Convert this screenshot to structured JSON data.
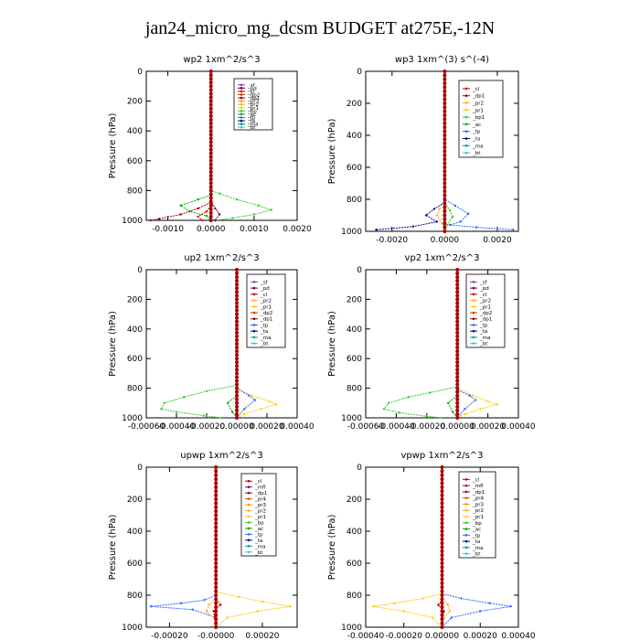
{
  "title": "jan24_micro_mg_dcsm  BUDGET at275E,-12N",
  "colors": {
    "main_profile": "#cc0000",
    "sf": "#9933cc",
    "pd": "#660033",
    "cl": "#cc0000",
    "dp2": "#cc3300",
    "dp1": "#990000",
    "pr3": "#ff9900",
    "pr2": "#ffaa33",
    "pr1": "#ffcc00",
    "pr4": "#cc6600",
    "bp": "#33cc33",
    "ac": "#00aa00",
    "tp": "#3366ff",
    "ta": "#000099",
    "ma": "#009999",
    "bt": "#33cccc",
    "mfl": "#990066"
  },
  "chart_data": [
    {
      "id": "wp2",
      "type": "line",
      "title": "wp2  1xm^2/s^3",
      "ylabel": "Pressure (hPa)",
      "ylim": [
        1000,
        0
      ],
      "yticks": [
        0,
        200,
        400,
        600,
        800,
        1000
      ],
      "xlim": [
        -0.0015,
        0.002
      ],
      "xticks": [
        -0.001,
        0.0,
        0.001,
        0.002
      ],
      "xtick_labels": [
        "-0.0010",
        "0.0000",
        "0.0010",
        "0.0020"
      ],
      "legend": [
        "_sf",
        "_pd",
        "_cl",
        "_dp2",
        "_dp1",
        "_pr3",
        "_pr2",
        "_pr1",
        "_bp",
        "_ac",
        "_tp",
        "_ta",
        "_ma",
        "_bt"
      ],
      "series": [
        {
          "key": "bp",
          "points": [
            [
              0,
              0
            ],
            [
              0,
              800
            ],
            [
              0.0002,
              820
            ],
            [
              0.0006,
              860
            ],
            [
              0.0011,
              900
            ],
            [
              0.0014,
              930
            ],
            [
              0.001,
              960
            ],
            [
              0.0005,
              985
            ],
            [
              0.0001,
              1000
            ]
          ]
        },
        {
          "key": "ac",
          "points": [
            [
              0,
              0
            ],
            [
              0,
              830
            ],
            [
              -0.0003,
              860
            ],
            [
              -0.0007,
              900
            ],
            [
              -0.0005,
              940
            ],
            [
              -0.0001,
              970
            ],
            [
              0,
              1000
            ]
          ]
        },
        {
          "key": "dp1",
          "points": [
            [
              0,
              0
            ],
            [
              0,
              880
            ],
            [
              -0.0003,
              920
            ],
            [
              -0.0007,
              960
            ],
            [
              -0.0012,
              990
            ],
            [
              -0.0014,
              1000
            ]
          ]
        },
        {
          "key": "cl",
          "points": [
            [
              0,
              0
            ],
            [
              0,
              900
            ],
            [
              -0.0001,
              940
            ],
            [
              -0.0003,
              975
            ],
            [
              -0.0002,
              1000
            ]
          ]
        },
        {
          "key": "pd",
          "points": [
            [
              0,
              0
            ],
            [
              0,
              870
            ],
            [
              0.0001,
              920
            ],
            [
              0.0002,
              960
            ],
            [
              0.0001,
              1000
            ]
          ]
        },
        {
          "key": "main_profile",
          "points": [
            [
              0,
              0
            ],
            [
              0,
              1000
            ]
          ]
        }
      ]
    },
    {
      "id": "wp3",
      "type": "line",
      "title": "wp3  1xm^(3) s^(-4)",
      "ylabel": "Pressure (hPa)",
      "ylim": [
        1000,
        0
      ],
      "yticks": [
        0,
        200,
        400,
        600,
        800,
        1000
      ],
      "xlim": [
        -0.003,
        0.0028
      ],
      "xticks": [
        -0.002,
        0.0,
        0.002
      ],
      "xtick_labels": [
        "-0.0020",
        "0.0000",
        "0.0020"
      ],
      "legend": [
        "_cl",
        "_dp1",
        "_pr2",
        "_pr1",
        "_bp1",
        "_ac",
        "_tp",
        "_ta",
        "_ma",
        "_bt"
      ],
      "series": [
        {
          "key": "tp",
          "points": [
            [
              0,
              0
            ],
            [
              0,
              800
            ],
            [
              0.0004,
              840
            ],
            [
              0.0009,
              890
            ],
            [
              0.0006,
              940
            ],
            [
              0.0002,
              960
            ],
            [
              0.0012,
              975
            ],
            [
              0.0026,
              990
            ]
          ]
        },
        {
          "key": "ta",
          "points": [
            [
              0,
              0
            ],
            [
              0,
              820
            ],
            [
              -0.0004,
              860
            ],
            [
              -0.0007,
              900
            ],
            [
              -0.0003,
              940
            ],
            [
              -0.0012,
              970
            ],
            [
              -0.0026,
              990
            ]
          ]
        },
        {
          "key": "pr2",
          "points": [
            [
              0,
              0
            ],
            [
              0,
              800
            ],
            [
              -0.0002,
              860
            ],
            [
              -0.0003,
              900
            ],
            [
              -0.0001,
              950
            ],
            [
              0,
              990
            ]
          ]
        },
        {
          "key": "bp",
          "points": [
            [
              0,
              0
            ],
            [
              0,
              820
            ],
            [
              0.0002,
              870
            ],
            [
              0.0003,
              910
            ],
            [
              0.0001,
              960
            ],
            [
              0,
              990
            ]
          ]
        },
        {
          "key": "main_profile",
          "points": [
            [
              0,
              0
            ],
            [
              0,
              1000
            ]
          ]
        }
      ]
    },
    {
      "id": "up2",
      "type": "line",
      "title": "up2  1xm^2/s^3",
      "ylabel": "Pressure (hPa)",
      "ylim": [
        1000,
        0
      ],
      "yticks": [
        0,
        200,
        400,
        600,
        800,
        1000
      ],
      "xlim": [
        -0.0006,
        0.0004
      ],
      "xticks": [
        -0.0006,
        -0.0004,
        -0.0002,
        0.0,
        0.0002,
        0.0004
      ],
      "xtick_labels": [
        "-0.00060",
        "-0.00040",
        "-0.00020",
        "0.00000",
        "0.00020",
        "0.00040"
      ],
      "legend": [
        "_sf",
        "_pd",
        "_cl",
        "_pr2",
        "_pr1",
        "_dp2",
        "_dp1",
        "_tp",
        "_ta",
        "_ma",
        "_bt"
      ],
      "series": [
        {
          "key": "bp",
          "points": [
            [
              0,
              0
            ],
            [
              0,
              780
            ],
            [
              -0.0002,
              820
            ],
            [
              -0.00035,
              860
            ],
            [
              -0.00048,
              900
            ],
            [
              -0.0005,
              940
            ],
            [
              -0.0004,
              960
            ],
            [
              -0.00022,
              985
            ],
            [
              -0.0001,
              1000
            ]
          ]
        },
        {
          "key": "pr1",
          "points": [
            [
              0,
              0
            ],
            [
              0,
              800
            ],
            [
              0.0001,
              850
            ],
            [
              0.00022,
              890
            ],
            [
              0.00026,
              910
            ],
            [
              0.00016,
              940
            ],
            [
              5e-05,
              975
            ],
            [
              0,
              1000
            ]
          ]
        },
        {
          "key": "tp",
          "points": [
            [
              0,
              0
            ],
            [
              0,
              800
            ],
            [
              8e-05,
              850
            ],
            [
              0.00012,
              880
            ],
            [
              5e-05,
              940
            ],
            [
              0,
              1000
            ]
          ]
        },
        {
          "key": "ac",
          "points": [
            [
              0,
              0
            ],
            [
              0,
              850
            ],
            [
              -6e-05,
              900
            ],
            [
              -3e-05,
              960
            ],
            [
              0,
              1000
            ]
          ]
        },
        {
          "key": "main_profile",
          "points": [
            [
              0,
              0
            ],
            [
              0,
              1000
            ]
          ]
        }
      ]
    },
    {
      "id": "vp2",
      "type": "line",
      "title": "vp2  1xm^2/s^3",
      "ylabel": "Pressure (hPa)",
      "ylim": [
        1000,
        0
      ],
      "yticks": [
        0,
        200,
        400,
        600,
        800,
        1000
      ],
      "xlim": [
        -0.0006,
        0.0004
      ],
      "xticks": [
        -0.0006,
        -0.0004,
        -0.0002,
        0.0,
        0.0002,
        0.0004
      ],
      "xtick_labels": [
        "-0.00060",
        "-0.00040",
        "-0.00020",
        "0.00000",
        "0.00020",
        "0.00040"
      ],
      "legend": [
        "_sf",
        "_pd",
        "_cl",
        "_pr2",
        "_pr1",
        "_dp2",
        "_dp1",
        "_tp",
        "_ta",
        "_ma",
        "_bt"
      ],
      "series": [
        {
          "key": "bp",
          "points": [
            [
              0,
              0
            ],
            [
              0,
              790
            ],
            [
              -0.00018,
              830
            ],
            [
              -0.00032,
              860
            ],
            [
              -0.00045,
              900
            ],
            [
              -0.00048,
              940
            ],
            [
              -0.00038,
              965
            ],
            [
              -0.0002,
              990
            ],
            [
              -0.0001,
              1000
            ]
          ]
        },
        {
          "key": "pr1",
          "points": [
            [
              0,
              0
            ],
            [
              0,
              800
            ],
            [
              0.0001,
              850
            ],
            [
              0.0002,
              890
            ],
            [
              0.00026,
              910
            ],
            [
              0.00015,
              940
            ],
            [
              5e-05,
              975
            ],
            [
              0,
              1000
            ]
          ]
        },
        {
          "key": "tp",
          "points": [
            [
              0,
              0
            ],
            [
              0,
              810
            ],
            [
              8e-05,
              850
            ],
            [
              0.00012,
              880
            ],
            [
              5e-05,
              940
            ],
            [
              0,
              1000
            ]
          ]
        },
        {
          "key": "ac",
          "points": [
            [
              0,
              0
            ],
            [
              0,
              850
            ],
            [
              -6e-05,
              900
            ],
            [
              -3e-05,
              960
            ],
            [
              0,
              1000
            ]
          ]
        },
        {
          "key": "main_profile",
          "points": [
            [
              0,
              0
            ],
            [
              0,
              1000
            ]
          ]
        }
      ]
    },
    {
      "id": "upwp",
      "type": "line",
      "title": "upwp  1xm^2/s^3",
      "ylabel": "Pressure (hPa)",
      "ylim": [
        1000,
        0
      ],
      "yticks": [
        0,
        200,
        400,
        600,
        800,
        1000
      ],
      "xlim": [
        -0.0003,
        0.00035
      ],
      "xticks": [
        -0.0002,
        0.0,
        0.0002
      ],
      "xtick_labels": [
        "-0.00020",
        "-0.00000",
        "0.00020"
      ],
      "legend": [
        "_cl",
        "_mfl",
        "_dp1",
        "_pr4",
        "_pr3",
        "_pr2",
        "_pr1",
        "_bp",
        "_ac",
        "_tp",
        "_ta",
        "_ma",
        "_bt"
      ],
      "series": [
        {
          "key": "pr1",
          "points": [
            [
              0,
              0
            ],
            [
              0,
              780
            ],
            [
              0.0001,
              810
            ],
            [
              0.0002,
              840
            ],
            [
              0.00032,
              870
            ],
            [
              0.00018,
              900
            ],
            [
              5e-05,
              940
            ],
            [
              0,
              1000
            ]
          ]
        },
        {
          "key": "tp",
          "points": [
            [
              0,
              0
            ],
            [
              0,
              800
            ],
            [
              -5e-05,
              830
            ],
            [
              -0.00015,
              850
            ],
            [
              -0.00028,
              870
            ],
            [
              -0.0001,
              890
            ],
            [
              0,
              940
            ],
            [
              0,
              1000
            ]
          ]
        },
        {
          "key": "pr2",
          "points": [
            [
              0,
              0
            ],
            [
              0,
              820
            ],
            [
              -3e-05,
              860
            ],
            [
              -4e-05,
              900
            ],
            [
              0,
              960
            ],
            [
              0,
              1000
            ]
          ]
        },
        {
          "key": "cl",
          "points": [
            [
              0,
              0
            ],
            [
              0,
              820
            ],
            [
              2e-05,
              860
            ],
            [
              -1e-05,
              900
            ],
            [
              0,
              1000
            ]
          ]
        },
        {
          "key": "main_profile",
          "points": [
            [
              0,
              0
            ],
            [
              0,
              1000
            ]
          ]
        }
      ]
    },
    {
      "id": "vpwp",
      "type": "line",
      "title": "vpwp  1xm^2/s^3",
      "ylabel": "Pressure (hPa)",
      "ylim": [
        1000,
        0
      ],
      "yticks": [
        0,
        200,
        400,
        600,
        800,
        1000
      ],
      "xlim": [
        -0.0004,
        0.0004
      ],
      "xticks": [
        -0.0004,
        -0.0002,
        0.0,
        0.0002,
        0.0004
      ],
      "xtick_labels": [
        "-0.00040",
        "-0.00020",
        "0.00000",
        "0.00020",
        "0.00040"
      ],
      "legend": [
        "_cl",
        "_mfl",
        "_dp1",
        "_pr4",
        "_pr3",
        "_pr2",
        "_pr1",
        "_bp",
        "_ac",
        "_tp",
        "_ta",
        "_ma",
        "_bt"
      ],
      "series": [
        {
          "key": "pr1",
          "points": [
            [
              0,
              0
            ],
            [
              0,
              790
            ],
            [
              -0.0001,
              820
            ],
            [
              -0.00025,
              850
            ],
            [
              -0.00036,
              870
            ],
            [
              -0.0002,
              900
            ],
            [
              -5e-05,
              940
            ],
            [
              0,
              1000
            ]
          ]
        },
        {
          "key": "tp",
          "points": [
            [
              0,
              0
            ],
            [
              0,
              790
            ],
            [
              0.0001,
              820
            ],
            [
              0.00025,
              850
            ],
            [
              0.00036,
              870
            ],
            [
              0.0002,
              900
            ],
            [
              5e-05,
              940
            ],
            [
              0,
              1000
            ]
          ]
        },
        {
          "key": "pr2",
          "points": [
            [
              0,
              0
            ],
            [
              0,
              820
            ],
            [
              3e-05,
              860
            ],
            [
              4e-05,
              900
            ],
            [
              0,
              960
            ],
            [
              0,
              1000
            ]
          ]
        },
        {
          "key": "cl",
          "points": [
            [
              0,
              0
            ],
            [
              0,
              830
            ],
            [
              -2e-05,
              860
            ],
            [
              1e-05,
              900
            ],
            [
              0,
              1000
            ]
          ]
        },
        {
          "key": "main_profile",
          "points": [
            [
              0,
              0
            ],
            [
              0,
              1000
            ]
          ]
        }
      ]
    }
  ]
}
